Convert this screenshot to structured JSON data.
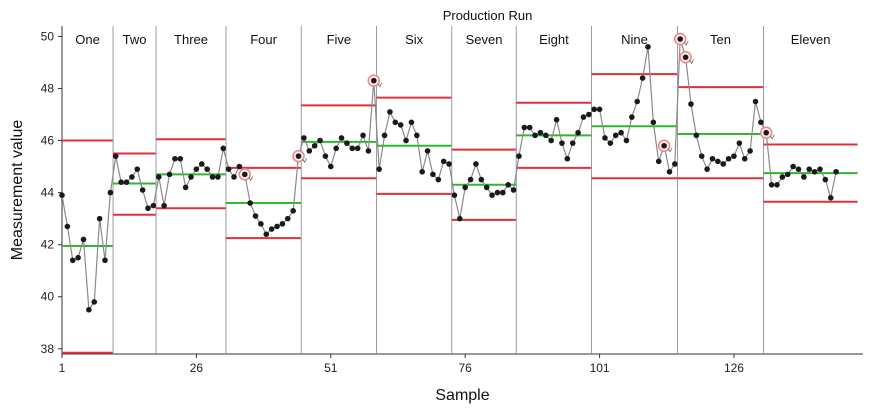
{
  "chart_data": {
    "type": "line",
    "title": "Production Run",
    "xlabel": "Sample",
    "ylabel": "Measurement value",
    "xlim": [
      1,
      150
    ],
    "ylim": [
      37.8,
      50.4
    ],
    "x_ticks": [
      1,
      26,
      51,
      76,
      101,
      126
    ],
    "y_ticks": [
      38,
      40,
      42,
      44,
      46,
      48,
      50
    ],
    "grid": false,
    "series": [
      {
        "values": [
          43.9,
          42.7,
          41.4,
          41.5,
          42.2,
          39.5,
          39.8,
          43.0,
          41.4,
          44.0,
          45.4,
          44.4,
          44.4,
          44.6,
          44.9,
          44.1,
          43.4,
          43.5,
          44.6,
          43.5,
          44.7,
          45.3,
          45.3,
          44.2,
          44.6,
          44.9,
          45.1,
          44.9,
          44.6,
          44.6,
          45.7,
          44.9,
          44.6,
          45.0,
          44.7,
          43.6,
          43.1,
          42.8,
          42.4,
          42.6,
          42.7,
          42.8,
          43.0,
          43.3,
          45.4,
          46.1,
          45.6,
          45.8,
          46.0,
          45.4,
          45.0,
          45.7,
          46.1,
          45.9,
          45.7,
          45.7,
          46.2,
          45.6,
          48.3,
          44.9,
          46.2,
          47.1,
          46.7,
          46.6,
          46.0,
          46.7,
          46.2,
          44.8,
          45.6,
          44.7,
          44.5,
          45.2,
          45.1,
          43.9,
          43.0,
          44.2,
          44.5,
          45.1,
          44.5,
          44.2,
          43.9,
          44.0,
          44.0,
          44.3,
          44.1,
          45.4,
          46.5,
          46.5,
          46.2,
          46.3,
          46.2,
          46.0,
          46.8,
          45.9,
          45.3,
          45.9,
          46.3,
          46.9,
          47.0,
          47.2,
          47.2,
          46.1,
          45.9,
          46.2,
          46.3,
          46.0,
          46.9,
          47.5,
          48.4,
          49.6,
          46.7,
          45.2,
          45.8,
          44.8,
          45.1,
          49.9,
          49.2,
          47.4,
          46.2,
          45.4,
          44.9,
          45.3,
          45.2,
          45.1,
          45.3,
          45.4,
          45.9,
          45.3,
          45.6,
          47.5,
          46.7,
          46.3,
          44.3,
          44.3,
          44.6,
          44.7,
          45.0,
          44.9,
          44.6,
          44.9,
          44.8,
          44.9,
          44.5,
          43.8,
          44.8
        ]
      }
    ],
    "phases": [
      {
        "name": "One",
        "start": 1,
        "end": 10,
        "center": 41.95,
        "lcl": 37.85,
        "ucl": 46.0
      },
      {
        "name": "Two",
        "start": 11,
        "end": 18,
        "center": 44.35,
        "lcl": 43.15,
        "ucl": 45.5
      },
      {
        "name": "Three",
        "start": 19,
        "end": 31,
        "center": 44.7,
        "lcl": 43.4,
        "ucl": 46.05
      },
      {
        "name": "Four",
        "start": 32,
        "end": 45,
        "center": 43.6,
        "lcl": 42.25,
        "ucl": 44.95
      },
      {
        "name": "Five",
        "start": 46,
        "end": 59,
        "center": 45.95,
        "lcl": 44.55,
        "ucl": 47.35
      },
      {
        "name": "Six",
        "start": 60,
        "end": 73,
        "center": 45.8,
        "lcl": 43.95,
        "ucl": 47.65
      },
      {
        "name": "Seven",
        "start": 74,
        "end": 85,
        "center": 44.3,
        "lcl": 42.95,
        "ucl": 45.65
      },
      {
        "name": "Eight",
        "start": 86,
        "end": 99,
        "center": 46.2,
        "lcl": 44.95,
        "ucl": 47.45
      },
      {
        "name": "Nine",
        "start": 100,
        "end": 115,
        "center": 46.55,
        "lcl": 44.55,
        "ucl": 48.55
      },
      {
        "name": "Ten",
        "start": 116,
        "end": 131,
        "center": 46.25,
        "lcl": 44.55,
        "ucl": 48.05
      },
      {
        "name": "Eleven",
        "start": 132,
        "end": 145,
        "center": 44.75,
        "lcl": 43.65,
        "ucl": 45.85
      }
    ],
    "flagged_samples": [
      35,
      45,
      59,
      113,
      116,
      117,
      132
    ],
    "colors": {
      "line": "#8a8a8a",
      "point": "#1a1a1a",
      "center": "#2db82d",
      "limit": "#e0303a",
      "phase_divider": "#9a9a9a",
      "flag_ring": "#e8888f"
    }
  }
}
